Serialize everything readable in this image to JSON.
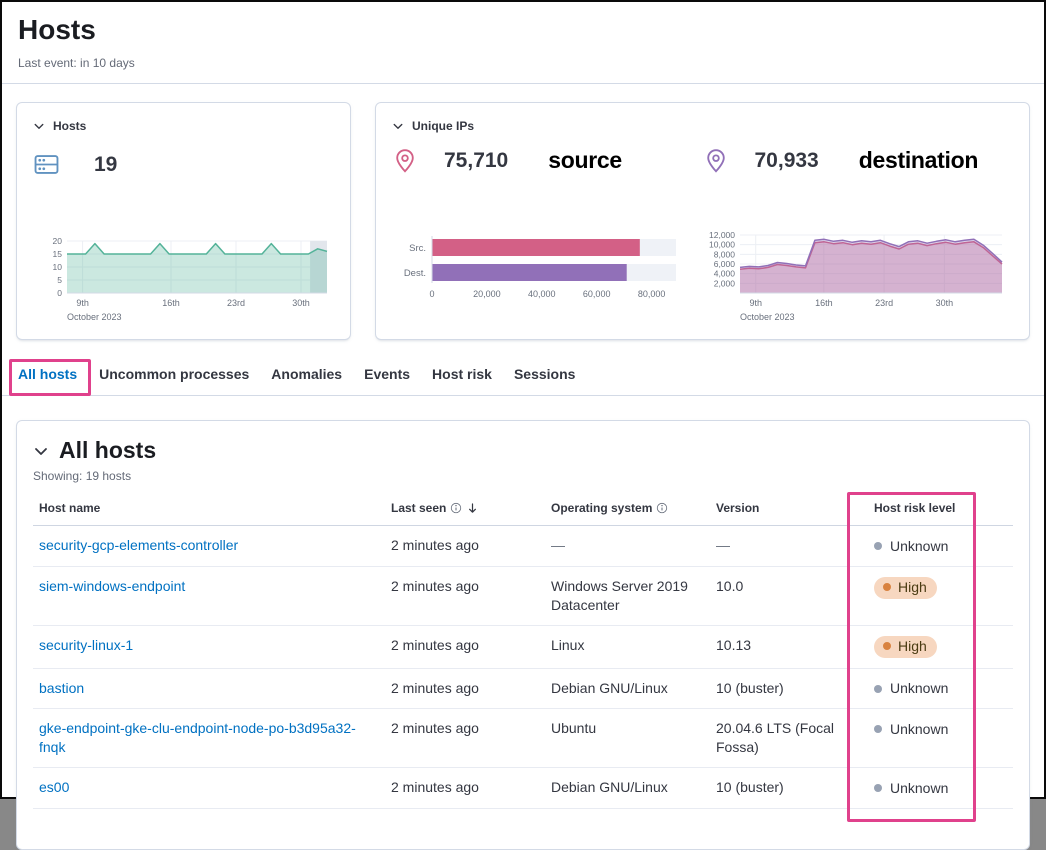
{
  "page": {
    "title": "Hosts",
    "subtitle": "Last event: in 10 days"
  },
  "hosts_card": {
    "title": "Hosts",
    "value": "19"
  },
  "unique_ips_card": {
    "title": "Unique IPs",
    "source_value": "75,710",
    "source_label": "source",
    "destination_value": "70,933",
    "destination_label": "destination"
  },
  "tabs": [
    {
      "label": "All hosts",
      "selected": true
    },
    {
      "label": "Uncommon processes",
      "selected": false
    },
    {
      "label": "Anomalies",
      "selected": false
    },
    {
      "label": "Events",
      "selected": false
    },
    {
      "label": "Host risk",
      "selected": false
    },
    {
      "label": "Sessions",
      "selected": false
    }
  ],
  "all_hosts_panel": {
    "title": "All hosts",
    "showing": "Showing: 19 hosts"
  },
  "table": {
    "columns": [
      "Host name",
      "Last seen",
      "Operating system",
      "Version",
      "Host risk level"
    ],
    "rows": [
      {
        "host": "security-gcp-elements-controller",
        "last_seen": "2 minutes ago",
        "os": "—",
        "version": "—",
        "risk": "Unknown"
      },
      {
        "host": "siem-windows-endpoint",
        "last_seen": "2 minutes ago",
        "os": "Windows Server 2019 Datacenter",
        "version": "10.0",
        "risk": "High"
      },
      {
        "host": "security-linux-1",
        "last_seen": "2 minutes ago",
        "os": "Linux",
        "version": "10.13",
        "risk": "High"
      },
      {
        "host": "bastion",
        "last_seen": "2 minutes ago",
        "os": "Debian GNU/Linux",
        "version": "10 (buster)",
        "risk": "Unknown"
      },
      {
        "host": "gke-endpoint-gke-clu-endpoint-node-po-b3d95a32-fnqk",
        "last_seen": "2 minutes ago",
        "os": "Ubuntu",
        "version": "20.04.6 LTS (Focal Fossa)",
        "risk": "Unknown"
      },
      {
        "host": "es00",
        "last_seen": "2 minutes ago",
        "os": "Debian GNU/Linux",
        "version": "10 (buster)",
        "risk": "Unknown"
      }
    ]
  },
  "colors": {
    "annotation_pink": "#e0418c",
    "link_blue": "#0071c2",
    "risk_high_bg": "#f7d7c0",
    "risk_high_dot": "#d9823f",
    "risk_unknown_dot": "#98a2b3",
    "hosts_green": "#54b399",
    "source_pink": "#d36086",
    "destination_purple": "#9170b8",
    "storage_icon_blue": "#6092c0"
  },
  "chart_data": [
    {
      "type": "area",
      "name": "hosts-over-time",
      "x": [
        "9th",
        "16th",
        "23rd",
        "30th"
      ],
      "xfrac": [
        0.06,
        0.4,
        0.65,
        0.9
      ],
      "xlabel": "October 2023",
      "ylim": [
        0,
        20
      ],
      "yticks": [
        0,
        5,
        10,
        15,
        20
      ],
      "end_band": true,
      "series": [
        {
          "name": "hosts",
          "color": "#54b399",
          "values": [
            15,
            15,
            15,
            19,
            15,
            15,
            15,
            15,
            15,
            15,
            19,
            15,
            15,
            15,
            15,
            15,
            19,
            15,
            15,
            15,
            15,
            15,
            19,
            15,
            15,
            15,
            15,
            17,
            16
          ]
        }
      ]
    },
    {
      "type": "bar",
      "name": "unique-ips-source-vs-destination",
      "orientation": "horizontal",
      "categories": [
        "Src.",
        "Dest."
      ],
      "values": [
        75710,
        70933
      ],
      "colors": [
        "#d36086",
        "#9170b8"
      ],
      "xlim": [
        0,
        80000
      ],
      "xticks": [
        0,
        20000,
        40000,
        60000,
        80000
      ]
    },
    {
      "type": "area",
      "name": "unique-ips-over-time",
      "x": [
        "9th",
        "16th",
        "23rd",
        "30th"
      ],
      "xfrac": [
        0.06,
        0.32,
        0.55,
        0.78
      ],
      "xlabel": "October 2023",
      "ylim": [
        0,
        12000
      ],
      "yticks": [
        2000,
        4000,
        6000,
        8000,
        10000,
        12000
      ],
      "series": [
        {
          "name": "source",
          "color": "#d36086",
          "values": [
            4900,
            5100,
            5000,
            5300,
            5900,
            5700,
            5400,
            5200,
            10400,
            10600,
            10200,
            10400,
            10000,
            10300,
            10100,
            10400,
            9700,
            9100,
            10100,
            10300,
            9800,
            10200,
            10500,
            10100,
            10400,
            10600,
            9400,
            7700,
            6000
          ]
        },
        {
          "name": "destination",
          "color": "#9170b8",
          "values": [
            5300,
            5500,
            5400,
            5700,
            6300,
            6100,
            5800,
            5600,
            10900,
            11100,
            10700,
            10900,
            10500,
            10800,
            10600,
            10900,
            10200,
            9600,
            10600,
            10800,
            10300,
            10700,
            11000,
            10600,
            10900,
            11100,
            9900,
            8200,
            6400
          ]
        }
      ]
    }
  ]
}
